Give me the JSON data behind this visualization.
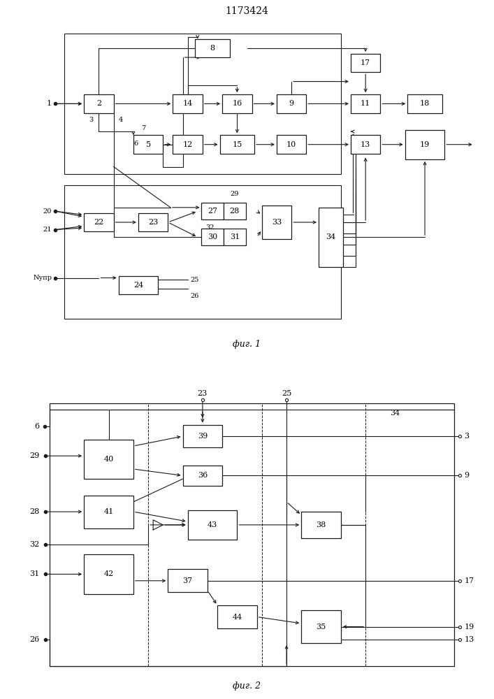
{
  "title": "1173424",
  "fig1_caption": "фиг. 1",
  "fig2_caption": "фиг. 2",
  "bg_color": "#ffffff",
  "line_color": "#1a1a1a",
  "box_color": "#ffffff",
  "box_edge": "#1a1a1a",
  "font_size": 8,
  "title_font_size": 10
}
